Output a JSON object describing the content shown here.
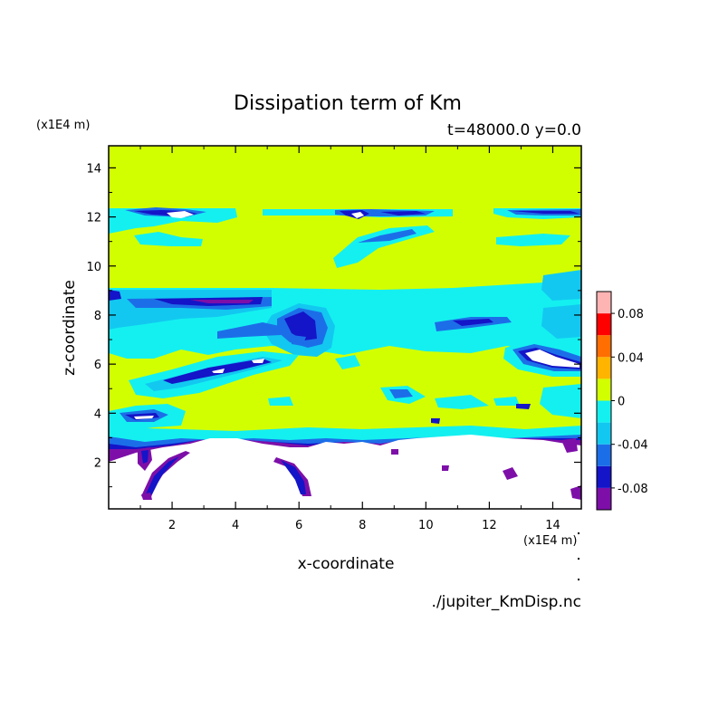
{
  "chart_data": {
    "type": "heatmap",
    "title": "Dissipation term of Km",
    "subtitle": "t=48000.0 y=0.0",
    "xlabel": "x-coordinate",
    "ylabel": "z-coordinate",
    "x_unit": "(x1E4 m)",
    "y_unit": "(x1E4 m)",
    "source": "./jupiter_KmDisp.nc",
    "xlim": [
      0,
      14.9
    ],
    "ylim": [
      0.1,
      14.9
    ],
    "x_ticks": [
      2,
      4,
      6,
      8,
      10,
      12,
      14
    ],
    "y_ticks": [
      2,
      4,
      6,
      8,
      10,
      12,
      14
    ],
    "colorbar": {
      "levels": [
        -0.1,
        -0.08,
        -0.06,
        -0.04,
        -0.02,
        0,
        0.02,
        0.04,
        0.06,
        0.08,
        0.1
      ],
      "colors": [
        "#7d0fa8",
        "#1414c8",
        "#1c6ee8",
        "#12c8f0",
        "#14f0f0",
        "#d2ff00",
        "#ffb400",
        "#ff6e00",
        "#ff0000",
        "#ffb4b4"
      ],
      "tick_values": [
        -0.08,
        -0.04,
        0,
        0.04,
        0.08
      ],
      "tick_labels": [
        "-0.08",
        "-0.04",
        "0",
        "0.04",
        "0.08"
      ]
    },
    "background_level": 0,
    "undefined_region": "white area below z ≈ 3",
    "features": [
      {
        "name": "band z≈12.2",
        "x_range": [
          0.1,
          2.9
        ],
        "z": 12.2,
        "min_level": -0.08
      },
      {
        "name": "band z≈12.2 mid",
        "x_range": [
          4.9,
          10.6
        ],
        "z": 12.2,
        "min_level": -0.08
      },
      {
        "name": "band z≈12.2 right",
        "x_range": [
          12.1,
          14.9
        ],
        "z": 12.2,
        "min_level": -0.08
      },
      {
        "name": "layer z≈7-9",
        "x_range": [
          0.1,
          14.9
        ],
        "z_range": [
          6.8,
          9.1
        ],
        "min_level": -0.08
      },
      {
        "name": "eddy x≈6",
        "x": 6.2,
        "z": 7.7,
        "min_level": -0.08
      },
      {
        "name": "streak z≈5.8",
        "x_range": [
          1.6,
          5.8
        ],
        "z": 5.8,
        "min_level": -0.1
      },
      {
        "name": "eddy x≈13.6",
        "x": 13.6,
        "z": 5.9,
        "min_level": -0.1
      },
      {
        "name": "streak z≈3.8",
        "x_range": [
          0.3,
          2.4
        ],
        "z": 3.8,
        "min_level": -0.1
      },
      {
        "name": "bottom boundary",
        "z": 3.0,
        "min_level": -0.1
      }
    ]
  }
}
